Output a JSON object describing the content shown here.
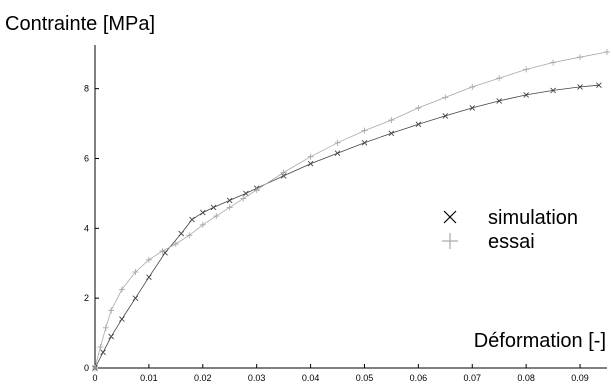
{
  "chart_data": {
    "type": "scatter",
    "ylabel": "Contrainte  [MPa]",
    "xlabel": "Déformation  [-]",
    "xlim": [
      0,
      0.095
    ],
    "ylim": [
      0,
      9.25
    ],
    "x_ticks": [
      "0",
      "0.01",
      "0.02",
      "0.03",
      "0.04",
      "0.05",
      "0.06",
      "0.07",
      "0.08",
      "0.09"
    ],
    "y_ticks": [
      "0",
      "2",
      "4",
      "6",
      "8"
    ],
    "grid": false,
    "legend_position": "right",
    "series": [
      {
        "name": "simulation",
        "marker": "x",
        "color": "#444444",
        "x": [
          0,
          0.0015,
          0.003,
          0.005,
          0.0075,
          0.01,
          0.013,
          0.016,
          0.018,
          0.02,
          0.022,
          0.025,
          0.028,
          0.03,
          0.035,
          0.04,
          0.045,
          0.05,
          0.055,
          0.06,
          0.065,
          0.07,
          0.075,
          0.08,
          0.085,
          0.09,
          0.0935
        ],
        "y": [
          0,
          0.45,
          0.9,
          1.4,
          2.0,
          2.6,
          3.3,
          3.85,
          4.25,
          4.45,
          4.6,
          4.8,
          5.0,
          5.15,
          5.5,
          5.85,
          6.15,
          6.45,
          6.72,
          6.98,
          7.22,
          7.45,
          7.65,
          7.82,
          7.95,
          8.05,
          8.1
        ]
      },
      {
        "name": "essai",
        "marker": "+",
        "color": "#a8a8a8",
        "x": [
          0,
          0.001,
          0.002,
          0.003,
          0.005,
          0.0075,
          0.01,
          0.0125,
          0.015,
          0.0175,
          0.02,
          0.0225,
          0.025,
          0.0275,
          0.03,
          0.035,
          0.04,
          0.045,
          0.05,
          0.055,
          0.06,
          0.065,
          0.07,
          0.075,
          0.08,
          0.085,
          0.09,
          0.095
        ],
        "y": [
          0,
          0.6,
          1.15,
          1.65,
          2.25,
          2.75,
          3.1,
          3.35,
          3.55,
          3.8,
          4.1,
          4.35,
          4.6,
          4.85,
          5.1,
          5.6,
          6.05,
          6.45,
          6.8,
          7.1,
          7.45,
          7.75,
          8.05,
          8.3,
          8.55,
          8.75,
          8.9,
          9.05
        ]
      }
    ]
  }
}
